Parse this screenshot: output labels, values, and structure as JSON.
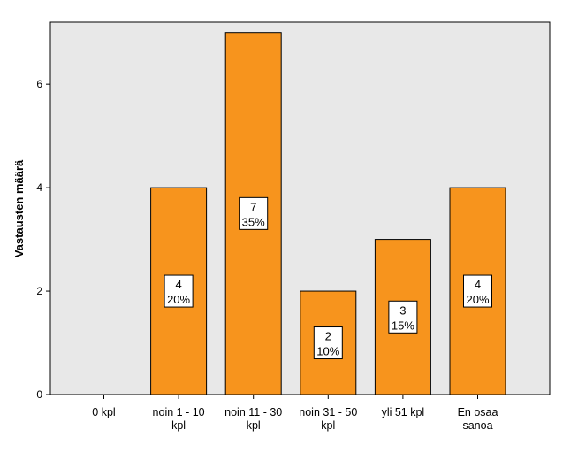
{
  "chart_data": {
    "type": "bar",
    "title": "",
    "xlabel": "",
    "ylabel": "Vastausten määrä",
    "ylim": [
      0,
      7.2
    ],
    "yticks": [
      0,
      2,
      4,
      6
    ],
    "grid": false,
    "categories": [
      [
        "0 kpl"
      ],
      [
        "noin 1 - 10",
        "kpl"
      ],
      [
        "noin 11 - 30",
        "kpl"
      ],
      [
        "noin 31 - 50",
        "kpl"
      ],
      [
        "yli 51 kpl"
      ],
      [
        "En osaa",
        "sanoa"
      ]
    ],
    "values": [
      0,
      4,
      7,
      2,
      3,
      4
    ],
    "data_labels": [
      null,
      [
        "4",
        "20%"
      ],
      [
        "7",
        "35%"
      ],
      [
        "2",
        "10%"
      ],
      [
        "3",
        "15%"
      ],
      [
        "4",
        "20%"
      ]
    ],
    "colors": {
      "bar_fill": "#F7941D",
      "bar_stroke": "#000000",
      "plot_background": "#E8E8E8",
      "page_background": "#FFFFFF"
    }
  }
}
